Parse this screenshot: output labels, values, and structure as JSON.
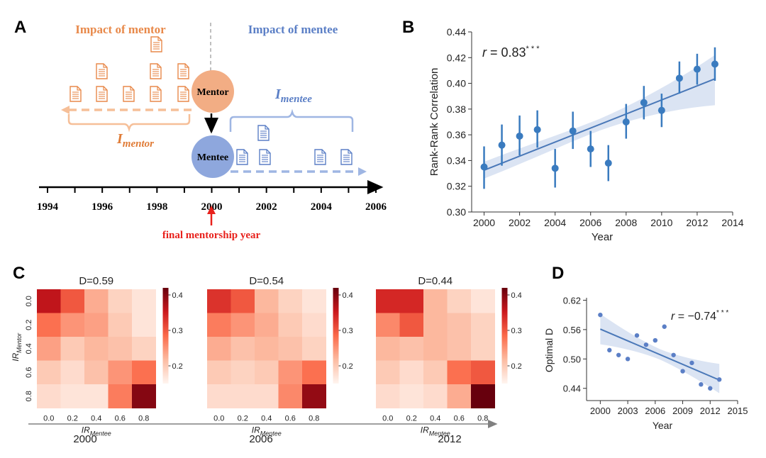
{
  "panel_letters": {
    "a": "A",
    "b": "B",
    "c": "C",
    "d": "D"
  },
  "panelA": {
    "impact_mentor": "Impact of mentor",
    "impact_mentee": "Impact of mentee",
    "mentor_node": "Mentor",
    "mentee_node": "Mentee",
    "i_symbol": "I",
    "i_mentor_sub": "mentor",
    "i_mentee_sub": "mentee",
    "years": [
      "1994",
      "1996",
      "1998",
      "2000",
      "2002",
      "2004",
      "2006"
    ],
    "final_label": "final mentorship year",
    "colors": {
      "mentor": "#e8894a",
      "mentor_light": "#f6bf98",
      "mentee": "#5b7fc6",
      "mentee_light": "#9fb6e3",
      "arrow_red": "#e8211c"
    }
  },
  "chart_data": [
    {
      "id": "B",
      "type": "scatter",
      "xlabel": "Year",
      "ylabel": "Rank-Rank Correlation",
      "xlim": [
        1999.3,
        2014
      ],
      "ylim": [
        0.3,
        0.44
      ],
      "xticks": [
        2000,
        2002,
        2004,
        2006,
        2008,
        2010,
        2012,
        2014
      ],
      "yticks": [
        "0.30",
        "0.32",
        "0.34",
        "0.36",
        "0.38",
        "0.40",
        "0.42",
        "0.44"
      ],
      "annotation": "r = 0.83***",
      "x": [
        2000,
        2001,
        2002,
        2003,
        2004,
        2005,
        2006,
        2007,
        2008,
        2009,
        2010,
        2011,
        2012,
        2013
      ],
      "y": [
        0.335,
        0.352,
        0.359,
        0.364,
        0.334,
        0.363,
        0.349,
        0.338,
        0.37,
        0.385,
        0.379,
        0.404,
        0.411,
        0.415
      ],
      "err_low": [
        0.318,
        0.336,
        0.344,
        0.35,
        0.319,
        0.349,
        0.335,
        0.324,
        0.357,
        0.372,
        0.366,
        0.392,
        0.399,
        0.402
      ],
      "err_high": [
        0.351,
        0.368,
        0.375,
        0.379,
        0.349,
        0.378,
        0.363,
        0.352,
        0.384,
        0.398,
        0.392,
        0.417,
        0.423,
        0.428
      ],
      "fit": {
        "x": [
          2000,
          2013
        ],
        "y": [
          0.3325,
          0.4035
        ]
      },
      "band_low": [
        0.326,
        0.383
      ],
      "band_high": [
        0.339,
        0.422
      ],
      "color": "#3a7bbf",
      "band_color": "#dbe4f3",
      "grid": false
    },
    {
      "id": "C",
      "type": "heatmap",
      "axis_label": "2000  2006  2012",
      "ylabel_base": "IR",
      "ylabel_sub": "Mentor",
      "xlabel_base": "IR",
      "xlabel_sub": "Mentee",
      "ticks": [
        "0.0",
        "0.2",
        "0.4",
        "0.6",
        "0.8"
      ],
      "colorbar_ticks": [
        "0.4",
        "0.3",
        "0.2"
      ],
      "colorbar_range": [
        0.15,
        0.42
      ],
      "timeline_years": [
        "2000",
        "2006",
        "2012"
      ],
      "maps": [
        {
          "title": "D=0.59",
          "matrix": [
            [
              0.36,
              0.3,
              0.23,
              0.19,
              0.17
            ],
            [
              0.28,
              0.25,
              0.24,
              0.2,
              0.17
            ],
            [
              0.24,
              0.2,
              0.22,
              0.21,
              0.19
            ],
            [
              0.2,
              0.18,
              0.21,
              0.25,
              0.28
            ],
            [
              0.18,
              0.17,
              0.17,
              0.27,
              0.4
            ]
          ]
        },
        {
          "title": "D=0.54",
          "matrix": [
            [
              0.33,
              0.3,
              0.22,
              0.19,
              0.17
            ],
            [
              0.27,
              0.25,
              0.23,
              0.2,
              0.18
            ],
            [
              0.23,
              0.21,
              0.22,
              0.21,
              0.19
            ],
            [
              0.2,
              0.19,
              0.2,
              0.25,
              0.28
            ],
            [
              0.18,
              0.18,
              0.18,
              0.26,
              0.39
            ]
          ]
        },
        {
          "title": "D=0.44",
          "matrix": [
            [
              0.34,
              0.34,
              0.22,
              0.19,
              0.17
            ],
            [
              0.26,
              0.3,
              0.22,
              0.21,
              0.19
            ],
            [
              0.22,
              0.21,
              0.22,
              0.21,
              0.19
            ],
            [
              0.2,
              0.18,
              0.2,
              0.28,
              0.3
            ],
            [
              0.18,
              0.17,
              0.18,
              0.23,
              0.42
            ]
          ]
        }
      ]
    },
    {
      "id": "D",
      "type": "scatter",
      "xlabel": "Year",
      "ylabel": "Optimal D",
      "xlim": [
        1998.5,
        2015
      ],
      "ylim": [
        0.415,
        0.625
      ],
      "xticks": [
        2000,
        2003,
        2006,
        2009,
        2012,
        2015
      ],
      "yticks": [
        "0.44",
        "0.50",
        "0.56",
        "0.62"
      ],
      "annotation": "r = −0.74***",
      "x": [
        2000,
        2001,
        2002,
        2003,
        2004,
        2005,
        2006,
        2007,
        2008,
        2009,
        2010,
        2011,
        2012,
        2013
      ],
      "y": [
        0.59,
        0.518,
        0.508,
        0.5,
        0.548,
        0.529,
        0.538,
        0.566,
        0.508,
        0.475,
        0.492,
        0.448,
        0.44,
        0.458
      ],
      "fit": {
        "x": [
          2000,
          2013
        ],
        "y": [
          0.561,
          0.457
        ]
      },
      "band_low": [
        0.53,
        0.43
      ],
      "band_high": [
        0.592,
        0.49
      ],
      "color": "#5b7fc6",
      "band_color": "#dbe4f3",
      "grid": false
    }
  ]
}
